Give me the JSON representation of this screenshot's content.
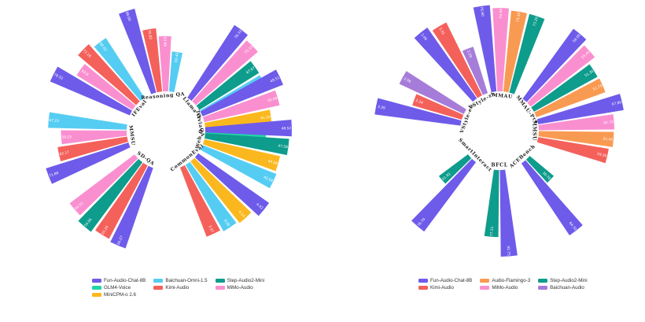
{
  "colors": {
    "Fun-Audio-Chat-8B": "#6E5BEA",
    "Baichuan-Omni-1.5": "#55CDF3",
    "Step-Audio2-Mini": "#0E9C8C",
    "GLM4-Voice": "#20D6A6",
    "Kimi-Audio": "#F4615B",
    "MiMo-Audio": "#FA8FD0",
    "MiniCPM-o 2.6": "#FBB81E",
    "Audio-Flamingo-3": "#F99A52",
    "Baichuan-Audio": "#A67CD9"
  },
  "chart_data": [
    {
      "type": "radial-bar",
      "title": "",
      "legend": [
        "Fun-Audio-Chat-8B",
        "Baichuan-Omni-1.5",
        "Step-Audio2-Mini",
        "GLM4-Voice",
        "Kimi-Audio",
        "MiMo-Audio",
        "MiniCPM-o 2.6"
      ],
      "groups": [
        {
          "category": "IFEval",
          "bars": [
            {
              "model": "Fun-Audio-Chat-8B",
              "label": "78.52",
              "value": 78.52
            },
            {
              "model": "MiMo-Audio",
              "label": "64.8",
              "value": 64.8
            },
            {
              "model": "Kimi-Audio",
              "label": "72.16",
              "value": 72.16
            },
            {
              "model": "Baichuan-Omni-1.5",
              "label": "68.42",
              "value": 68.42
            }
          ]
        },
        {
          "category": "Reasoning QA",
          "bars": [
            {
              "model": "Fun-Audio-Chat-8B",
              "label": "88.00",
              "value": 88.0
            },
            {
              "model": "Kimi-Audio",
              "label": "70.82",
              "value": 70.82
            },
            {
              "model": "MiMo-Audio",
              "label": "63.96",
              "value": 63.96
            },
            {
              "model": "Baichuan-Omni-1.5",
              "label": "50.40",
              "value": 50.4
            }
          ]
        },
        {
          "category": "Llama Q.",
          "bars": [
            {
              "model": "Fun-Audio-Chat-8B",
              "label": "78.33",
              "value": 78.33
            },
            {
              "model": "MiMo-Audio",
              "label": "75.33",
              "value": 75.33
            },
            {
              "model": "Step-Audio2-Mini",
              "label": "67.67",
              "value": 67.67
            },
            {
              "model": "Baichuan-Omni-1.5",
              "label": "67.33",
              "value": 67.33
            }
          ]
        },
        {
          "category": "TriviaQA",
          "bars": [
            {
              "model": "Fun-Audio-Chat-8B",
              "label": "49.51",
              "value": 49.51
            },
            {
              "model": "MiMo-Audio",
              "label": "45.69",
              "value": 45.69
            },
            {
              "model": "MiniCPM-o 2.6",
              "label": "41.20",
              "value": 41.2
            },
            {
              "model": "GLM4-Voice",
              "label": "38.58",
              "value": 38.58
            }
          ]
        },
        {
          "category": "Web Q.",
          "bars": [
            {
              "model": "Fun-Audio-Chat-8B",
              "label": "48.52",
              "value": 48.52
            },
            {
              "model": "Step-Audio2-Mini",
              "label": "47.58",
              "value": 47.58
            },
            {
              "model": "MiniCPM-o 2.6",
              "label": "44.98",
              "value": 44.98
            },
            {
              "model": "Baichuan-Omni-1.5",
              "label": "45.68",
              "value": 45.68
            }
          ]
        },
        {
          "category": "CommonEval",
          "bars": [
            {
              "model": "Fun-Audio-Chat-8B",
              "label": "4.42",
              "value": 4.42
            },
            {
              "model": "MiniCPM-o 2.6",
              "label": "4.14",
              "value": 4.14
            },
            {
              "model": "Baichuan-Omni-1.5",
              "label": "4.06",
              "value": 4.06
            },
            {
              "model": "Kimi-Audio",
              "label": "3.97",
              "value": 3.97
            }
          ]
        },
        {
          "category": "SD-QA",
          "bars": [
            {
              "model": "Fun-Audio-Chat-8B",
              "label": "56.27",
              "value": 56.27
            },
            {
              "model": "Kimi-Audio",
              "label": "55.24",
              "value": 55.24
            },
            {
              "model": "Step-Audio2-Mini",
              "label": "56.96",
              "value": 56.96
            },
            {
              "model": "MiMo-Audio",
              "label": "54.55",
              "value": 54.55
            }
          ]
        },
        {
          "category": "MMSU",
          "bars": [
            {
              "model": "Fun-Audio-Chat-8B",
              "label": "71.88",
              "value": 71.88
            },
            {
              "model": "Kimi-Audio",
              "label": "62.17",
              "value": 62.17
            },
            {
              "model": "MiMo-Audio",
              "label": "59.25",
              "value": 59.25
            },
            {
              "model": "Baichuan-Omni-1.5",
              "label": "67.23",
              "value": 67.23
            }
          ]
        }
      ]
    },
    {
      "type": "radial-bar",
      "title": "",
      "legend": [
        "Fun-Audio-Chat-8B",
        "Audio-Flamingo-3",
        "Step-Audio2-Mini",
        "Kimi-Audio",
        "MiMo-Audio",
        "Baichuan-Audio"
      ],
      "groups": [
        {
          "category": "VStyle-zh",
          "bars": [
            {
              "model": "Fun-Audio-Chat-8B",
              "label": "3.46",
              "value": 3.46
            },
            {
              "model": "Kimi-Audio",
              "label": "3.31",
              "value": 3.31
            },
            {
              "model": "Baichuan-Audio",
              "label": "2.29",
              "value": 2.29
            }
          ]
        },
        {
          "category": "MMAU",
          "bars": [
            {
              "model": "Fun-Audio-Chat-8B",
              "label": "76.60",
              "value": 76.6
            },
            {
              "model": "MiMo-Audio",
              "label": "74.60",
              "value": 74.6
            },
            {
              "model": "Audio-Flamingo-3",
              "label": "73.30",
              "value": 73.3
            },
            {
              "model": "Step-Audio2-Mini",
              "label": "73.20",
              "value": 73.2
            }
          ]
        },
        {
          "category": "MMAU-Pro",
          "bars": [
            {
              "model": "Fun-Audio-Chat-8B",
              "label": "58.00",
              "value": 58.0
            },
            {
              "model": "MiMo-Audio",
              "label": "55.40",
              "value": 55.4
            },
            {
              "model": "Step-Audio2-Mini",
              "label": "51.30",
              "value": 51.3
            },
            {
              "model": "Audio-Flamingo-3",
              "label": "51.70",
              "value": 51.7
            }
          ]
        },
        {
          "category": "MMSU",
          "bars": [
            {
              "model": "Fun-Audio-Chat-8B",
              "label": "67.80",
              "value": 67.8
            },
            {
              "model": "MiMo-Audio",
              "label": "61.70",
              "value": 61.7
            },
            {
              "model": "Audio-Flamingo-3",
              "label": "61.40",
              "value": 61.4
            },
            {
              "model": "Kimi-Audio",
              "label": "59.30",
              "value": 59.3
            }
          ]
        },
        {
          "category": "ACEBench",
          "bars": [
            {
              "model": "Step-Audio2-Mini",
              "label": "30.70",
              "value": 30.7
            },
            {
              "model": "Fun-Audio-Chat-8B",
              "label": "64.70",
              "value": 64.7
            }
          ]
        },
        {
          "category": "BFCL",
          "bars": [
            {
              "model": "Fun-Audio-Chat-8B",
              "label": "92.75",
              "value": 92.75
            },
            {
              "model": "Step-Audio2-Mini",
              "label": "77.51",
              "value": 77.51
            }
          ]
        },
        {
          "category": "SmartInteract",
          "bars": [
            {
              "model": "Fun-Audio-Chat-8B",
              "label": "78.70",
              "value": 78.7
            },
            {
              "model": "Step-Audio2-Mini",
              "label": "41.92",
              "value": 41.92
            }
          ]
        },
        {
          "category": "VStyle-en",
          "bars": [
            {
              "model": "Fun-Audio-Chat-8B",
              "label": "3.39",
              "value": 3.39
            },
            {
              "model": "Kimi-Audio",
              "label": "2.34",
              "value": 2.34
            },
            {
              "model": "Baichuan-Audio",
              "label": "2.96",
              "value": 2.96
            }
          ]
        }
      ]
    }
  ]
}
